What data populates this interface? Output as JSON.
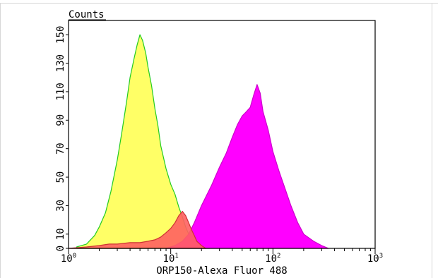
{
  "chart_data": {
    "type": "area",
    "title": "",
    "xlabel": "ORP150-Alexa Fluor 488",
    "ylabel": "Counts",
    "x_scale": "log",
    "xlim": [
      1,
      1000
    ],
    "ylim": [
      0,
      160
    ],
    "x_ticks": [
      {
        "value": 1,
        "base": "10",
        "exp": "0"
      },
      {
        "value": 10,
        "base": "10",
        "exp": "1"
      },
      {
        "value": 100,
        "base": "10",
        "exp": "2"
      },
      {
        "value": 1000,
        "base": "10",
        "exp": "3"
      }
    ],
    "y_ticks": [
      "0",
      "10",
      "30",
      "50",
      "70",
      "90",
      "110",
      "130",
      "150"
    ],
    "y_tick_values": [
      0,
      10,
      30,
      50,
      70,
      90,
      110,
      130,
      150
    ],
    "grid": false,
    "series": [
      {
        "fill": "#ffff66",
        "stroke": "#22cc22",
        "x": [
          1.2,
          1.5,
          1.8,
          2.0,
          2.3,
          2.6,
          3.0,
          3.3,
          3.7,
          4.0,
          4.4,
          4.7,
          5.0,
          5.3,
          5.7,
          6.0,
          6.5,
          7.0,
          7.5,
          8.0,
          9.0,
          10.0,
          11.0,
          12.0,
          13.0,
          14.0,
          15.0,
          17.0,
          19.0,
          21.0,
          24.0
        ],
        "y": [
          1,
          3,
          9,
          15,
          25,
          40,
          62,
          80,
          103,
          120,
          134,
          143,
          150,
          146,
          137,
          127,
          114,
          98,
          86,
          72,
          56,
          45,
          38,
          29,
          22,
          15,
          10,
          5,
          3,
          2,
          0
        ]
      },
      {
        "fill": "#ff00ff",
        "stroke": "#cc00cc",
        "x": [
          9.0,
          11.0,
          13.0,
          15.0,
          17.0,
          20.0,
          25.0,
          30.0,
          35.0,
          40.0,
          45.0,
          50.0,
          55.0,
          60.0,
          65.0,
          70.0,
          75.0,
          80.0,
          90.0,
          100.0,
          115.0,
          130.0,
          150.0,
          175.0,
          200.0,
          250.0,
          300.0,
          350.0
        ],
        "y": [
          0,
          2,
          5,
          10,
          18,
          30,
          44,
          57,
          67,
          78,
          87,
          93,
          96,
          99,
          108,
          115,
          109,
          96,
          83,
          68,
          54,
          43,
          30,
          18,
          10,
          5,
          2,
          0
        ]
      },
      {
        "fill": "#ff6060",
        "stroke": "#cc3333",
        "x": [
          1.0,
          1.5,
          2.0,
          2.5,
          3.0,
          4.0,
          5.0,
          6.0,
          7.0,
          8.0,
          9.0,
          10.0,
          11.0,
          12.0,
          13.0,
          14.0,
          15.0,
          16.0,
          17.0,
          18.0,
          20.0,
          22.0
        ],
        "y": [
          0,
          1,
          2,
          3,
          3,
          4,
          4,
          5,
          6,
          8,
          11,
          14,
          18,
          23,
          26,
          23,
          18,
          13,
          9,
          5,
          2,
          0
        ]
      }
    ]
  }
}
